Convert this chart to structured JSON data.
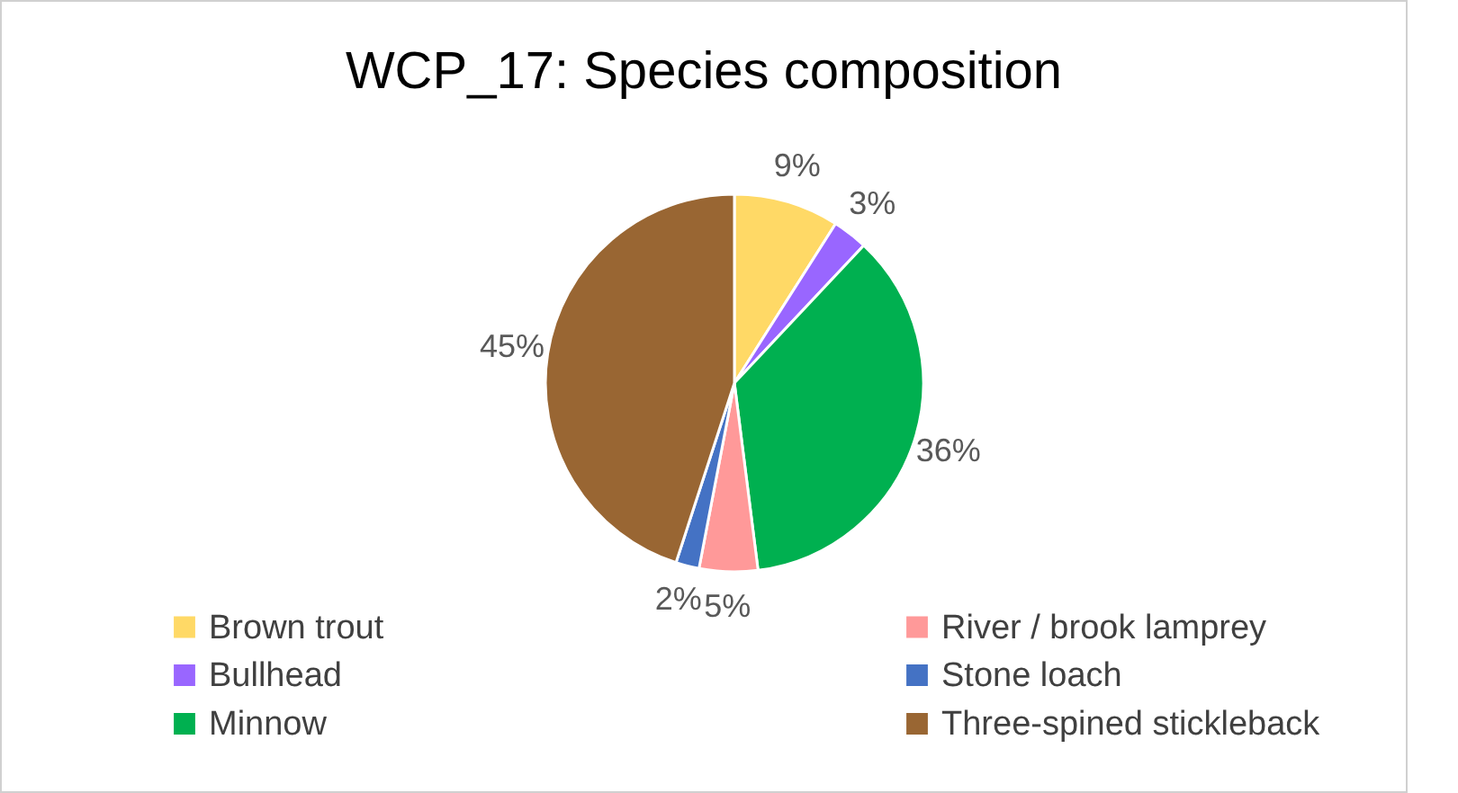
{
  "chart_data": {
    "type": "pie",
    "title": "WCP_17: Species composition",
    "categories": [
      "Brown trout",
      "Bullhead",
      "Minnow",
      "River / brook lamprey",
      "Stone loach",
      "Three-spined stickleback"
    ],
    "values": [
      9,
      3,
      36,
      5,
      2,
      45
    ],
    "value_labels": [
      "9%",
      "3%",
      "36%",
      "5%",
      "2%",
      "45%"
    ],
    "colors": [
      "#ffd966",
      "#9966ff",
      "#00b050",
      "#ff9999",
      "#4472c4",
      "#996633"
    ],
    "legend": "bottom"
  }
}
